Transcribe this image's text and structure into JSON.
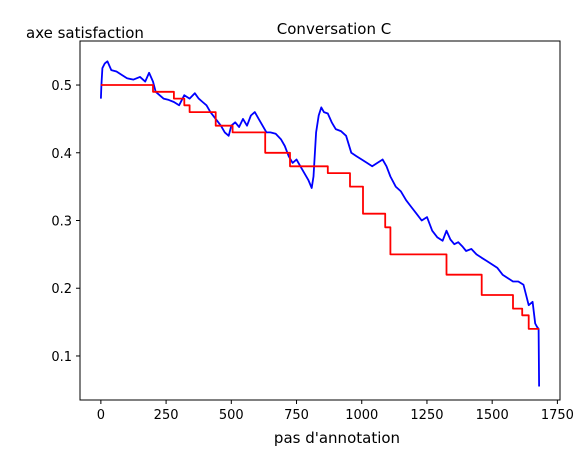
{
  "chart_data": {
    "type": "line",
    "title": "Conversation C",
    "xlabel": "pas d'annotation",
    "ylabel": "axe satisfaction",
    "xlim": [
      -80,
      1760
    ],
    "ylim": [
      0.035,
      0.565
    ],
    "xticks": [
      0,
      250,
      500,
      750,
      1000,
      1250,
      1500,
      1750
    ],
    "xtick_labels": [
      "0",
      "250",
      "500",
      "750",
      "1000",
      "1250",
      "1500",
      "1750"
    ],
    "yticks": [
      0.1,
      0.2,
      0.3,
      0.4,
      0.5
    ],
    "ytick_labels": [
      "0.1",
      "0.2",
      "0.3",
      "0.4",
      "0.5"
    ],
    "grid": false,
    "series": [
      {
        "color": "#0000ff",
        "points": [
          [
            0,
            0.48
          ],
          [
            2,
            0.5
          ],
          [
            6,
            0.525
          ],
          [
            15,
            0.532
          ],
          [
            25,
            0.535
          ],
          [
            40,
            0.522
          ],
          [
            60,
            0.52
          ],
          [
            80,
            0.515
          ],
          [
            100,
            0.51
          ],
          [
            125,
            0.508
          ],
          [
            150,
            0.512
          ],
          [
            170,
            0.505
          ],
          [
            185,
            0.518
          ],
          [
            200,
            0.505
          ],
          [
            210,
            0.49
          ],
          [
            225,
            0.485
          ],
          [
            240,
            0.48
          ],
          [
            260,
            0.478
          ],
          [
            280,
            0.475
          ],
          [
            300,
            0.47
          ],
          [
            320,
            0.485
          ],
          [
            340,
            0.48
          ],
          [
            360,
            0.488
          ],
          [
            375,
            0.48
          ],
          [
            390,
            0.475
          ],
          [
            405,
            0.47
          ],
          [
            420,
            0.46
          ],
          [
            440,
            0.45
          ],
          [
            460,
            0.44
          ],
          [
            475,
            0.43
          ],
          [
            490,
            0.425
          ],
          [
            500,
            0.44
          ],
          [
            515,
            0.445
          ],
          [
            530,
            0.438
          ],
          [
            545,
            0.45
          ],
          [
            560,
            0.44
          ],
          [
            575,
            0.455
          ],
          [
            590,
            0.46
          ],
          [
            605,
            0.45
          ],
          [
            620,
            0.44
          ],
          [
            635,
            0.43
          ],
          [
            650,
            0.43
          ],
          [
            670,
            0.428
          ],
          [
            690,
            0.42
          ],
          [
            705,
            0.41
          ],
          [
            720,
            0.395
          ],
          [
            735,
            0.385
          ],
          [
            750,
            0.39
          ],
          [
            765,
            0.38
          ],
          [
            780,
            0.37
          ],
          [
            795,
            0.36
          ],
          [
            808,
            0.348
          ],
          [
            815,
            0.365
          ],
          [
            825,
            0.43
          ],
          [
            835,
            0.455
          ],
          [
            845,
            0.467
          ],
          [
            855,
            0.46
          ],
          [
            870,
            0.458
          ],
          [
            885,
            0.445
          ],
          [
            900,
            0.435
          ],
          [
            920,
            0.432
          ],
          [
            940,
            0.425
          ],
          [
            960,
            0.4
          ],
          [
            980,
            0.395
          ],
          [
            1000,
            0.39
          ],
          [
            1020,
            0.385
          ],
          [
            1040,
            0.38
          ],
          [
            1060,
            0.385
          ],
          [
            1080,
            0.39
          ],
          [
            1095,
            0.38
          ],
          [
            1110,
            0.365
          ],
          [
            1130,
            0.35
          ],
          [
            1150,
            0.343
          ],
          [
            1170,
            0.33
          ],
          [
            1190,
            0.32
          ],
          [
            1210,
            0.31
          ],
          [
            1230,
            0.3
          ],
          [
            1250,
            0.305
          ],
          [
            1270,
            0.285
          ],
          [
            1290,
            0.275
          ],
          [
            1310,
            0.27
          ],
          [
            1325,
            0.285
          ],
          [
            1340,
            0.272
          ],
          [
            1355,
            0.265
          ],
          [
            1370,
            0.268
          ],
          [
            1385,
            0.262
          ],
          [
            1400,
            0.255
          ],
          [
            1420,
            0.258
          ],
          [
            1440,
            0.25
          ],
          [
            1460,
            0.245
          ],
          [
            1480,
            0.24
          ],
          [
            1500,
            0.235
          ],
          [
            1520,
            0.23
          ],
          [
            1540,
            0.22
          ],
          [
            1560,
            0.215
          ],
          [
            1580,
            0.21
          ],
          [
            1600,
            0.21
          ],
          [
            1620,
            0.205
          ],
          [
            1640,
            0.175
          ],
          [
            1655,
            0.18
          ],
          [
            1665,
            0.148
          ],
          [
            1672,
            0.143
          ],
          [
            1678,
            0.14
          ],
          [
            1680,
            0.055
          ]
        ]
      },
      {
        "color": "#ff0000",
        "step": true,
        "points": [
          [
            0,
            0.5
          ],
          [
            200,
            0.5
          ],
          [
            200,
            0.49
          ],
          [
            280,
            0.49
          ],
          [
            280,
            0.48
          ],
          [
            320,
            0.48
          ],
          [
            320,
            0.47
          ],
          [
            340,
            0.47
          ],
          [
            340,
            0.46
          ],
          [
            440,
            0.46
          ],
          [
            440,
            0.44
          ],
          [
            505,
            0.44
          ],
          [
            505,
            0.43
          ],
          [
            630,
            0.43
          ],
          [
            630,
            0.4
          ],
          [
            725,
            0.4
          ],
          [
            725,
            0.38
          ],
          [
            870,
            0.38
          ],
          [
            870,
            0.37
          ],
          [
            955,
            0.37
          ],
          [
            955,
            0.35
          ],
          [
            1005,
            0.35
          ],
          [
            1005,
            0.31
          ],
          [
            1090,
            0.31
          ],
          [
            1090,
            0.29
          ],
          [
            1110,
            0.29
          ],
          [
            1110,
            0.25
          ],
          [
            1325,
            0.25
          ],
          [
            1325,
            0.22
          ],
          [
            1460,
            0.22
          ],
          [
            1460,
            0.19
          ],
          [
            1580,
            0.19
          ],
          [
            1580,
            0.17
          ],
          [
            1615,
            0.17
          ],
          [
            1615,
            0.16
          ],
          [
            1640,
            0.16
          ],
          [
            1640,
            0.14
          ],
          [
            1680,
            0.14
          ]
        ]
      }
    ]
  }
}
